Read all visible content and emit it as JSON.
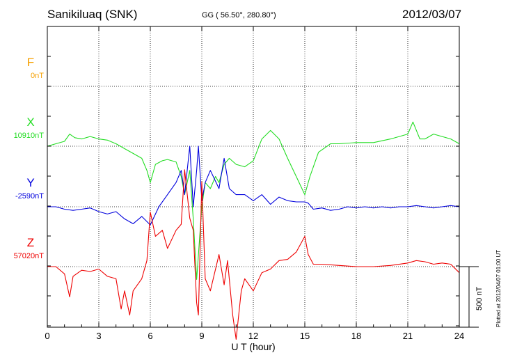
{
  "header": {
    "station": "Sanikiluaq (SNK)",
    "coords": "GG ( 56.50°, 280.80°)",
    "date": "2012/03/07"
  },
  "footer": {
    "plotted": "Plotted at 2012/04/07 01:00 UT"
  },
  "chart_data": {
    "type": "line",
    "title": "Sanikiluaq (SNK)",
    "xlabel": "U T (hour)",
    "ylabel": "",
    "xlim": [
      0,
      24
    ],
    "xticks": [
      "0",
      "3",
      "6",
      "9",
      "12",
      "15",
      "18",
      "21",
      "24"
    ],
    "grid": true,
    "scale_bar": "500 nT",
    "scale_bar_nT": 500,
    "series": [
      {
        "name": "F",
        "baseline": "0nT",
        "baseline_value": 0,
        "color": "#f5a000",
        "x": [],
        "y": []
      },
      {
        "name": "X",
        "baseline": "10910nT",
        "baseline_value": 10910,
        "color": "#22dd22",
        "x": [
          0,
          0.5,
          1,
          1.3,
          1.6,
          2,
          2.5,
          3,
          3.5,
          4,
          4.5,
          5,
          5.5,
          5.8,
          6,
          6.3,
          6.7,
          7,
          7.5,
          7.8,
          8,
          8.3,
          8.5,
          8.7,
          8.8,
          9,
          9.2,
          9.5,
          9.8,
          10,
          10.3,
          10.6,
          11,
          11.5,
          12,
          12.5,
          13,
          13.5,
          14,
          14.5,
          15,
          15.3,
          15.8,
          16.5,
          17,
          18,
          19,
          20,
          20.5,
          21,
          21.3,
          21.7,
          22,
          22.5,
          23,
          23.5,
          24
        ],
        "y": [
          0,
          20,
          40,
          100,
          70,
          60,
          80,
          60,
          50,
          20,
          -20,
          -60,
          -100,
          -200,
          -300,
          -150,
          -120,
          -110,
          -130,
          -250,
          -400,
          -200,
          -600,
          -1100,
          -900,
          -500,
          -300,
          -350,
          -250,
          -300,
          -150,
          -100,
          -150,
          -170,
          -120,
          60,
          130,
          60,
          -100,
          -250,
          -400,
          -250,
          -50,
          20,
          20,
          30,
          30,
          60,
          80,
          100,
          200,
          60,
          60,
          100,
          80,
          60,
          20
        ]
      },
      {
        "name": "Y",
        "baseline": "-2590nT",
        "baseline_value": -2590,
        "color": "#0000dd",
        "x": [
          0,
          0.5,
          1,
          1.5,
          2,
          2.5,
          3,
          3.5,
          4,
          4.5,
          5,
          5.5,
          6,
          6.5,
          7,
          7.5,
          7.8,
          8,
          8.3,
          8.5,
          8.7,
          8.8,
          9,
          9.2,
          9.5,
          10,
          10.3,
          10.6,
          11,
          11.5,
          12,
          12.5,
          13,
          13.5,
          14,
          14.5,
          15,
          15.2,
          15.5,
          16,
          16.5,
          17,
          17.5,
          18,
          18.5,
          19,
          19.5,
          20,
          20.5,
          21,
          21.5,
          22,
          22.5,
          23,
          23.5,
          24
        ],
        "y": [
          0,
          0,
          -20,
          -30,
          -20,
          -10,
          -40,
          -60,
          -40,
          -100,
          -140,
          -80,
          -150,
          0,
          100,
          200,
          300,
          100,
          500,
          0,
          300,
          500,
          50,
          200,
          300,
          150,
          400,
          150,
          100,
          100,
          50,
          100,
          20,
          80,
          50,
          40,
          40,
          30,
          -20,
          -10,
          -30,
          -20,
          0,
          -10,
          0,
          -10,
          0,
          -10,
          0,
          0,
          10,
          0,
          -10,
          0,
          10,
          0
        ]
      },
      {
        "name": "Z",
        "baseline": "57020nT",
        "baseline_value": 57020,
        "color": "#ee0000",
        "x": [
          0,
          0.5,
          1,
          1.3,
          1.5,
          2,
          2.5,
          3,
          3.5,
          4,
          4.3,
          4.5,
          4.8,
          5,
          5.5,
          5.8,
          6,
          6.3,
          6.7,
          7,
          7.5,
          7.8,
          8,
          8.3,
          8.5,
          8.7,
          8.8,
          9,
          9.2,
          9.5,
          10,
          10.3,
          10.5,
          10.8,
          11,
          11.3,
          11.5,
          12,
          12.5,
          13,
          13.5,
          14,
          14.5,
          15,
          15.2,
          15.5,
          16,
          17,
          18,
          19,
          20,
          21,
          21.5,
          22,
          22.5,
          23,
          23.5,
          24
        ],
        "y": [
          0,
          0,
          -60,
          -250,
          -80,
          -30,
          -40,
          -20,
          -80,
          -100,
          -350,
          -200,
          -400,
          -200,
          -100,
          50,
          450,
          250,
          300,
          150,
          300,
          350,
          800,
          400,
          300,
          -300,
          -400,
          700,
          -100,
          -200,
          100,
          -150,
          50,
          -400,
          -600,
          -200,
          -100,
          -200,
          -50,
          -20,
          50,
          60,
          120,
          250,
          100,
          20,
          20,
          10,
          0,
          0,
          10,
          30,
          50,
          40,
          20,
          30,
          20,
          -50
        ]
      }
    ]
  }
}
